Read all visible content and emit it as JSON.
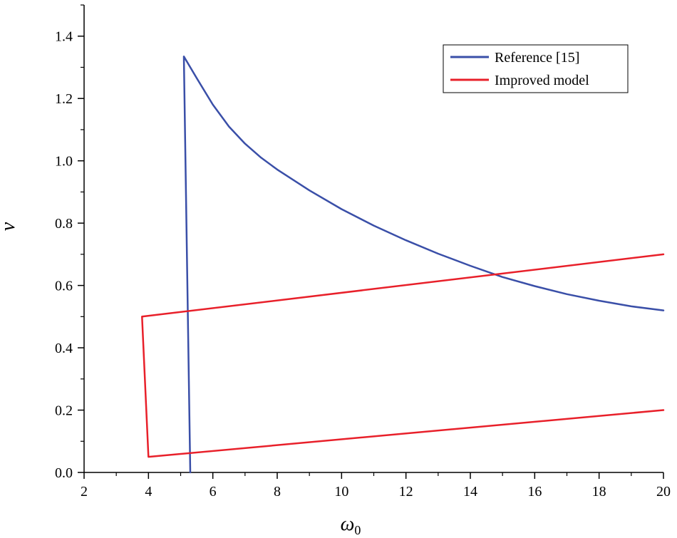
{
  "chart_data": {
    "type": "line",
    "title": "",
    "xlabel": "ω",
    "xlabel_subscript": "0",
    "ylabel": "ν",
    "xlim": [
      2,
      20
    ],
    "ylim": [
      0,
      1.5
    ],
    "x_ticks": [
      2,
      4,
      6,
      8,
      10,
      12,
      14,
      16,
      18,
      20
    ],
    "x_tick_labels": [
      "2",
      "4",
      "6",
      "8",
      "10",
      "12",
      "14",
      "16",
      "18",
      "20"
    ],
    "y_ticks": [
      0,
      0.2,
      0.4,
      0.6,
      0.8,
      1.0,
      1.2,
      1.4
    ],
    "y_tick_labels": [
      "0.0",
      "0.2",
      "0.4",
      "0.6",
      "0.8",
      "1.0",
      "1.2",
      "1.4"
    ],
    "grid": false,
    "legend_position": "top-right",
    "series": [
      {
        "name": "Reference [15]",
        "color": "#3A4FA8",
        "points": [
          [
            5.3,
            0.0
          ],
          [
            5.1,
            1.335
          ],
          [
            5.5,
            1.265
          ],
          [
            6.0,
            1.18
          ],
          [
            6.5,
            1.11
          ],
          [
            7.0,
            1.055
          ],
          [
            7.5,
            1.01
          ],
          [
            8.0,
            0.972
          ],
          [
            9.0,
            0.905
          ],
          [
            10.0,
            0.845
          ],
          [
            11.0,
            0.792
          ],
          [
            12.0,
            0.745
          ],
          [
            13.0,
            0.702
          ],
          [
            14.0,
            0.663
          ],
          [
            15.0,
            0.627
          ],
          [
            16.0,
            0.598
          ],
          [
            17.0,
            0.572
          ],
          [
            18.0,
            0.551
          ],
          [
            19.0,
            0.533
          ],
          [
            20.0,
            0.52
          ]
        ]
      },
      {
        "name": "Improved model",
        "color": "#E8202A",
        "points": [
          [
            20.0,
            0.7
          ],
          [
            3.8,
            0.5
          ],
          [
            4.0,
            0.05
          ],
          [
            20.0,
            0.2
          ]
        ]
      }
    ]
  }
}
